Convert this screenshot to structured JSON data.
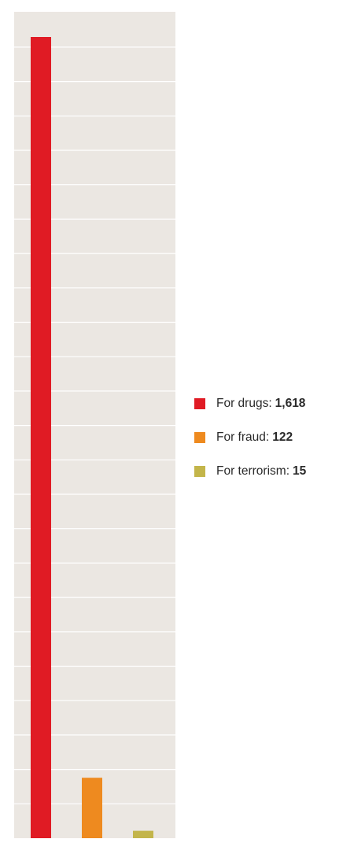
{
  "chart_data": {
    "type": "bar",
    "categories": [
      "For drugs:",
      "For fraud:",
      "For terrorism:"
    ],
    "values": [
      1618,
      122,
      15
    ],
    "value_labels": [
      "1,618",
      "122",
      "15"
    ],
    "colors": [
      "#e01b24",
      "#ee8a1f",
      "#c3b54a"
    ],
    "title": "",
    "xlabel": "",
    "ylabel": "",
    "ylim": [
      0,
      1700
    ],
    "grid": true,
    "legend_position": "right",
    "background": "#ebe7e2",
    "gridline_color": "#ffffff"
  }
}
